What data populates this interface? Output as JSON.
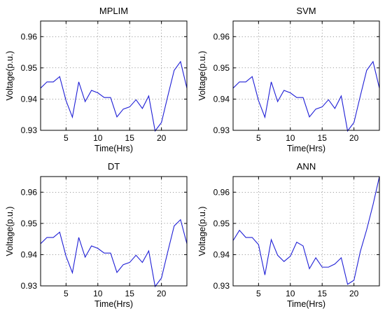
{
  "chart_data": [
    {
      "type": "line",
      "title": "MPLIM",
      "xlabel": "Time(Hrs)",
      "ylabel": "Voltage(p.u.)",
      "xlim": [
        1,
        24
      ],
      "ylim": [
        0.93,
        0.965
      ],
      "xticks": [
        5,
        10,
        15,
        20
      ],
      "yticks": [
        0.93,
        0.94,
        0.95,
        0.96
      ],
      "grid": true,
      "color": "#1f1fd6",
      "x": [
        1,
        2,
        3,
        4,
        5,
        6,
        7,
        8,
        9,
        10,
        11,
        12,
        13,
        14,
        15,
        16,
        17,
        18,
        19,
        20,
        21,
        22,
        23,
        24
      ],
      "values": [
        0.9435,
        0.9455,
        0.9455,
        0.9472,
        0.9395,
        0.9342,
        0.9455,
        0.9392,
        0.9428,
        0.942,
        0.9405,
        0.9405,
        0.9343,
        0.9368,
        0.9375,
        0.9398,
        0.937,
        0.941,
        0.9298,
        0.9325,
        0.941,
        0.9492,
        0.952,
        0.9435
      ]
    },
    {
      "type": "line",
      "title": "SVM",
      "xlabel": "Time(Hrs)",
      "ylabel": "Voltage(p.u.)",
      "xlim": [
        1,
        24
      ],
      "ylim": [
        0.93,
        0.965
      ],
      "xticks": [
        5,
        10,
        15,
        20
      ],
      "yticks": [
        0.93,
        0.94,
        0.95,
        0.96
      ],
      "grid": true,
      "color": "#1f1fd6",
      "x": [
        1,
        2,
        3,
        4,
        5,
        6,
        7,
        8,
        9,
        10,
        11,
        12,
        13,
        14,
        15,
        16,
        17,
        18,
        19,
        20,
        21,
        22,
        23,
        24
      ],
      "values": [
        0.9435,
        0.9455,
        0.9455,
        0.9472,
        0.9395,
        0.9342,
        0.9455,
        0.9392,
        0.9428,
        0.942,
        0.9405,
        0.9405,
        0.9343,
        0.9368,
        0.9375,
        0.9398,
        0.937,
        0.941,
        0.9298,
        0.9325,
        0.941,
        0.9492,
        0.952,
        0.9435
      ]
    },
    {
      "type": "line",
      "title": "DT",
      "xlabel": "Time(Hrs)",
      "ylabel": "Voltage(p.u.)",
      "xlim": [
        1,
        24
      ],
      "ylim": [
        0.93,
        0.965
      ],
      "xticks": [
        5,
        10,
        15,
        20
      ],
      "yticks": [
        0.93,
        0.94,
        0.95,
        0.96
      ],
      "grid": true,
      "color": "#1f1fd6",
      "x": [
        1,
        2,
        3,
        4,
        5,
        6,
        7,
        8,
        9,
        10,
        11,
        12,
        13,
        14,
        15,
        16,
        17,
        18,
        19,
        20,
        21,
        22,
        23,
        24
      ],
      "values": [
        0.9435,
        0.9455,
        0.9455,
        0.9472,
        0.9395,
        0.9342,
        0.9455,
        0.9392,
        0.9428,
        0.942,
        0.9405,
        0.9405,
        0.9343,
        0.9368,
        0.9375,
        0.9398,
        0.9375,
        0.9412,
        0.9298,
        0.9325,
        0.941,
        0.9492,
        0.9512,
        0.9435
      ]
    },
    {
      "type": "line",
      "title": "ANN",
      "xlabel": "Time(Hrs)",
      "ylabel": "Voltage(p.u.)",
      "xlim": [
        1,
        24
      ],
      "ylim": [
        0.93,
        0.965
      ],
      "xticks": [
        5,
        10,
        15,
        20
      ],
      "yticks": [
        0.93,
        0.94,
        0.95,
        0.96
      ],
      "grid": true,
      "color": "#1f1fd6",
      "x": [
        1,
        2,
        3,
        4,
        5,
        6,
        7,
        8,
        9,
        10,
        11,
        12,
        13,
        14,
        15,
        16,
        17,
        18,
        19,
        20,
        21,
        22,
        23,
        24
      ],
      "values": [
        0.9445,
        0.9478,
        0.9455,
        0.9455,
        0.9432,
        0.9335,
        0.9448,
        0.9398,
        0.9378,
        0.9395,
        0.944,
        0.9428,
        0.9355,
        0.939,
        0.936,
        0.936,
        0.937,
        0.939,
        0.9305,
        0.9318,
        0.941,
        0.948,
        0.956,
        0.965
      ]
    }
  ]
}
